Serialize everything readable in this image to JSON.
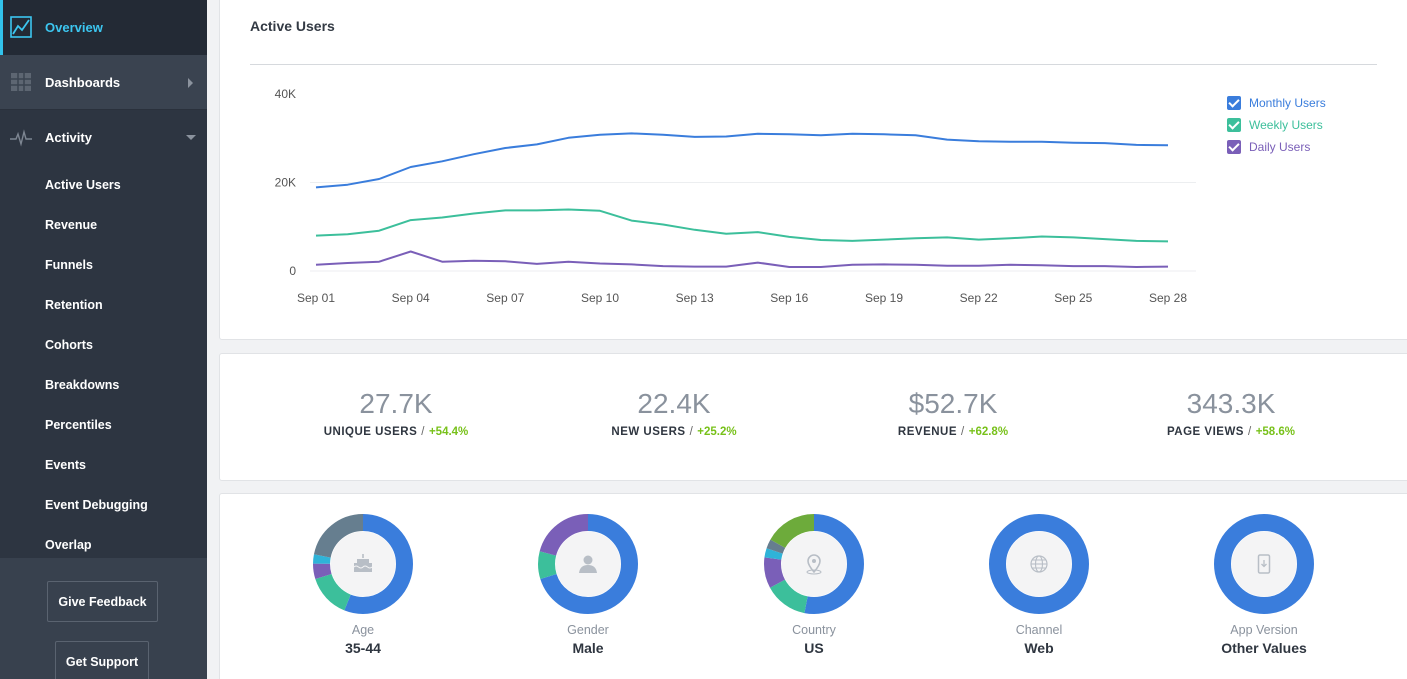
{
  "sidebar": {
    "overview_label": "Overview",
    "dashboards_label": "Dashboards",
    "activity_label": "Activity",
    "activity_items": [
      "Active Users",
      "Revenue",
      "Funnels",
      "Retention",
      "Cohorts",
      "Breakdowns",
      "Percentiles",
      "Events",
      "Event Debugging",
      "Overlap"
    ],
    "feedback_label": "Give Feedback",
    "support_label": "Get Support"
  },
  "active_users": {
    "title": "Active Users",
    "legend": [
      {
        "label": "Monthly Users",
        "color": "#3a7ddc"
      },
      {
        "label": "Weekly Users",
        "color": "#3cbf9b"
      },
      {
        "label": "Daily Users",
        "color": "#7a5fb8"
      }
    ]
  },
  "chart_data": {
    "type": "line",
    "title": "Active Users",
    "x": [
      "Sep 01",
      "Sep 02",
      "Sep 03",
      "Sep 04",
      "Sep 05",
      "Sep 06",
      "Sep 07",
      "Sep 08",
      "Sep 09",
      "Sep 10",
      "Sep 11",
      "Sep 12",
      "Sep 13",
      "Sep 14",
      "Sep 15",
      "Sep 16",
      "Sep 17",
      "Sep 18",
      "Sep 19",
      "Sep 20",
      "Sep 21",
      "Sep 22",
      "Sep 23",
      "Sep 24",
      "Sep 25",
      "Sep 26",
      "Sep 27",
      "Sep 28"
    ],
    "x_ticks": [
      "Sep 01",
      "Sep 04",
      "Sep 07",
      "Sep 10",
      "Sep 13",
      "Sep 16",
      "Sep 19",
      "Sep 22",
      "Sep 25",
      "Sep 28"
    ],
    "y_ticks": [
      "40K",
      "20K",
      "0"
    ],
    "ylim": [
      0,
      40000
    ],
    "grid": true,
    "legend_position": "top-right",
    "series": [
      {
        "name": "Monthly Users",
        "color": "#3a7ddc",
        "values": [
          18900,
          19500,
          20800,
          23500,
          24800,
          26400,
          27800,
          28600,
          30100,
          30800,
          31100,
          30800,
          30300,
          30400,
          31000,
          30900,
          30700,
          31000,
          30900,
          30700,
          29700,
          29300,
          29200,
          29200,
          29000,
          28900,
          28500,
          28400
        ]
      },
      {
        "name": "Weekly Users",
        "color": "#3cbf9b",
        "values": [
          8000,
          8300,
          9100,
          11500,
          12100,
          13000,
          13700,
          13700,
          13900,
          13600,
          11400,
          10500,
          9300,
          8400,
          8800,
          7700,
          7000,
          6800,
          7100,
          7400,
          7600,
          7100,
          7400,
          7800,
          7600,
          7200,
          6800,
          6700
        ]
      },
      {
        "name": "Daily Users",
        "color": "#7a5fb8",
        "values": [
          1400,
          1800,
          2100,
          4400,
          2100,
          2300,
          2200,
          1600,
          2100,
          1700,
          1500,
          1100,
          1000,
          1000,
          1900,
          900,
          900,
          1400,
          1500,
          1400,
          1200,
          1200,
          1400,
          1300,
          1100,
          1100,
          900,
          1000
        ]
      }
    ]
  },
  "stats": [
    {
      "value": "27.7K",
      "label": "UNIQUE USERS",
      "change": "+54.4%"
    },
    {
      "value": "22.4K",
      "label": "NEW USERS",
      "change": "+25.2%"
    },
    {
      "value": "$52.7K",
      "label": "REVENUE",
      "change": "+62.8%"
    },
    {
      "value": "343.3K",
      "label": "PAGE VIEWS",
      "change": "+58.6%"
    }
  ],
  "donuts": [
    {
      "label": "Age",
      "value": "35-44",
      "icon": "cake-icon",
      "segments": [
        {
          "pct": 56,
          "color": "#3a7ddc"
        },
        {
          "pct": 14,
          "color": "#3cbf9b"
        },
        {
          "pct": 5,
          "color": "#7a5fb8"
        },
        {
          "pct": 3,
          "color": "#2fb3d8"
        },
        {
          "pct": 22,
          "color": "#667e8f"
        }
      ]
    },
    {
      "label": "Gender",
      "value": "Male",
      "icon": "user-icon",
      "segments": [
        {
          "pct": 70,
          "color": "#3a7ddc"
        },
        {
          "pct": 9,
          "color": "#3cbf9b"
        },
        {
          "pct": 21,
          "color": "#7a5fb8"
        }
      ]
    },
    {
      "label": "Country",
      "value": "US",
      "icon": "location-icon",
      "segments": [
        {
          "pct": 53,
          "color": "#3a7ddc"
        },
        {
          "pct": 14,
          "color": "#3cbf9b"
        },
        {
          "pct": 10,
          "color": "#7a5fb8"
        },
        {
          "pct": 3,
          "color": "#2fb3d8"
        },
        {
          "pct": 3,
          "color": "#667e8f"
        },
        {
          "pct": 17,
          "color": "#6dab3b"
        }
      ]
    },
    {
      "label": "Channel",
      "value": "Web",
      "icon": "globe-icon",
      "segments": [
        {
          "pct": 100,
          "color": "#3a7ddc"
        }
      ]
    },
    {
      "label": "App Version",
      "value": "Other Values",
      "icon": "phone-icon",
      "segments": [
        {
          "pct": 100,
          "color": "#3a7ddc"
        }
      ]
    }
  ]
}
